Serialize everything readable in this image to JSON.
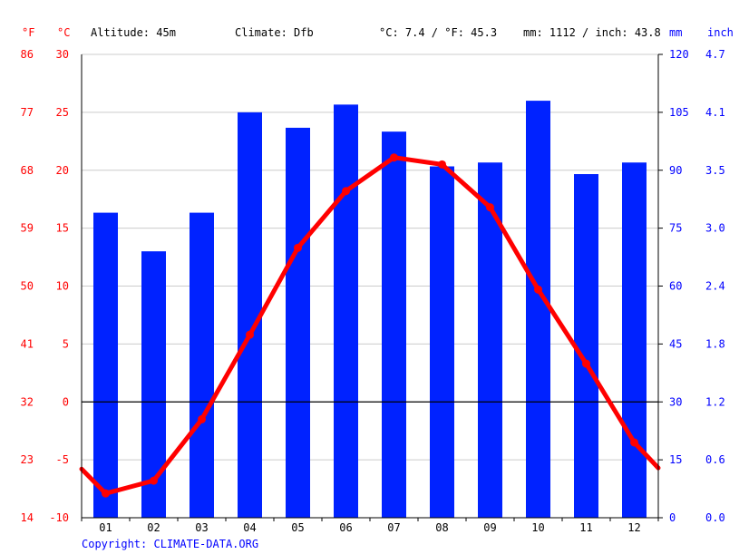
{
  "header": {
    "unit_f": "°F",
    "unit_c": "°C",
    "altitude": "Altitude: 45m",
    "climate": "Climate: Dfb",
    "temp_avg": "°C: 7.4 / °F: 45.3",
    "precip_total": "mm: 1112 / inch: 43.8",
    "unit_mm": "mm",
    "unit_inch": "inch"
  },
  "footer": {
    "copyright": "Copyright: CLIMATE-DATA.ORG"
  },
  "colors": {
    "temperature": "#ff0000",
    "precipitation": "#0022ff",
    "grid": "#cccccc",
    "zero_line": "#000000"
  },
  "chart_data": {
    "type": "bar",
    "categories": [
      "01",
      "02",
      "03",
      "04",
      "05",
      "06",
      "07",
      "08",
      "09",
      "10",
      "11",
      "12"
    ],
    "series": [
      {
        "type": "bar",
        "axis": "right",
        "values": [
          79,
          69,
          79,
          105,
          101,
          107,
          100,
          91,
          92,
          108,
          89,
          92
        ]
      },
      {
        "type": "line",
        "axis": "left",
        "values": [
          -7.9,
          -6.8,
          -1.5,
          5.8,
          13.3,
          18.2,
          21.1,
          20.5,
          16.8,
          9.7,
          3.3,
          -3.5
        ]
      }
    ],
    "line_edge_values": [
      -5.8,
      -5.7
    ],
    "left_axis_c": {
      "ticks": [
        "30",
        "25",
        "20",
        "15",
        "10",
        "5",
        "0",
        "-5",
        "-10"
      ],
      "range": [
        -10,
        30
      ]
    },
    "left_axis_f": {
      "ticks": [
        "86",
        "77",
        "68",
        "59",
        "50",
        "41",
        "32",
        "23",
        "14"
      ]
    },
    "right_axis_mm": {
      "ticks": [
        "120",
        "105",
        "90",
        "75",
        "60",
        "45",
        "30",
        "15",
        "0"
      ],
      "range": [
        0,
        120
      ]
    },
    "right_axis_inch": {
      "ticks": [
        "4.7",
        "4.1",
        "3.5",
        "3.0",
        "2.4",
        "1.8",
        "1.2",
        "0.6",
        "0.0"
      ]
    },
    "grid": true
  }
}
